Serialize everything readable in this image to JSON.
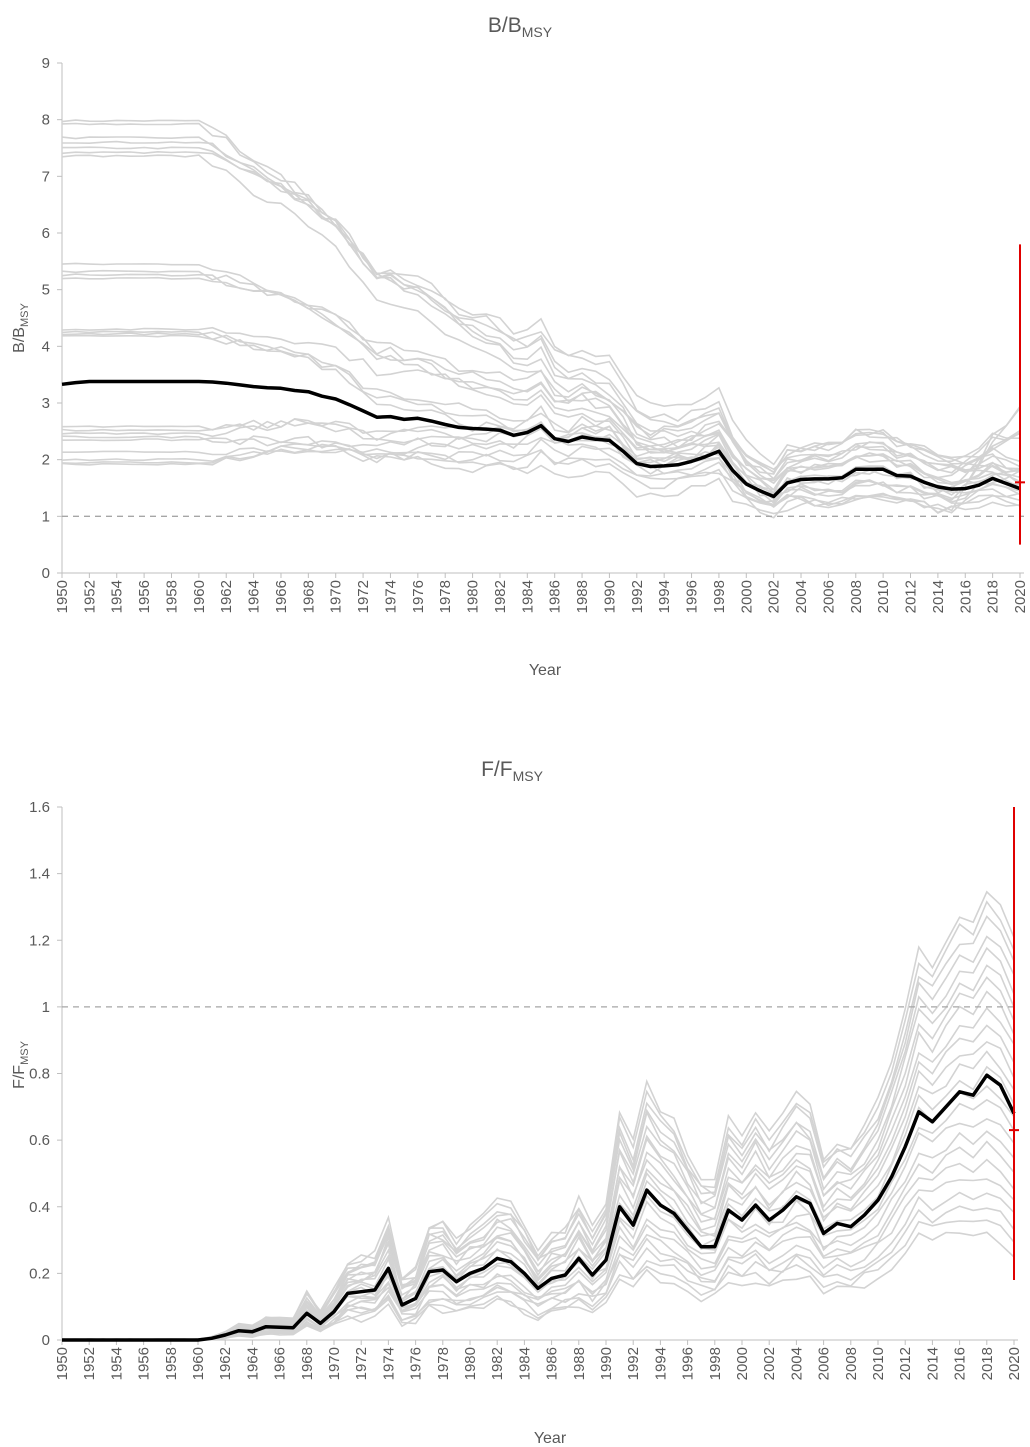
{
  "chart_data": [
    {
      "type": "line",
      "title": "B/B",
      "title_sub": "MSY",
      "xlabel": "Year",
      "ylabel": "B/B",
      "ylabel_sub": "MSY",
      "xlim": [
        1950,
        2020
      ],
      "ylim": [
        0,
        9
      ],
      "yticks": [
        0,
        1,
        2,
        3,
        4,
        5,
        6,
        7,
        8,
        9
      ],
      "xticks": [
        1950,
        1952,
        1954,
        1956,
        1958,
        1960,
        1962,
        1964,
        1966,
        1968,
        1970,
        1972,
        1974,
        1976,
        1978,
        1980,
        1982,
        1984,
        1986,
        1988,
        1990,
        1992,
        1994,
        1996,
        1998,
        2000,
        2002,
        2004,
        2006,
        2008,
        2010,
        2012,
        2014,
        2016,
        2018,
        2020
      ],
      "reference_line": 1,
      "colors": {
        "median": "#000000",
        "ensemble": "#d3d3d3",
        "interval": "#e00000",
        "reference": "#a6a6a6"
      },
      "median": {
        "x": [
          1950,
          1951,
          1952,
          1953,
          1954,
          1955,
          1956,
          1957,
          1958,
          1959,
          1960,
          1961,
          1962,
          1963,
          1964,
          1965,
          1966,
          1967,
          1968,
          1969,
          1970,
          1971,
          1972,
          1973,
          1974,
          1975,
          1976,
          1977,
          1978,
          1979,
          1980,
          1981,
          1982,
          1983,
          1984,
          1985,
          1986,
          1987,
          1988,
          1989,
          1990,
          1991,
          1992,
          1993,
          1994,
          1995,
          1996,
          1997,
          1998,
          1999,
          2000,
          2001,
          2002,
          2003,
          2004,
          2005,
          2006,
          2007,
          2008,
          2009,
          2010,
          2011,
          2012,
          2013,
          2014,
          2015,
          2016,
          2017,
          2018,
          2019,
          2020
        ],
        "y": [
          3.33,
          3.36,
          3.38,
          3.38,
          3.38,
          3.38,
          3.38,
          3.38,
          3.38,
          3.38,
          3.38,
          3.37,
          3.35,
          3.32,
          3.29,
          3.27,
          3.26,
          3.22,
          3.2,
          3.12,
          3.07,
          2.97,
          2.86,
          2.75,
          2.76,
          2.71,
          2.73,
          2.68,
          2.62,
          2.57,
          2.55,
          2.54,
          2.52,
          2.43,
          2.48,
          2.6,
          2.37,
          2.32,
          2.4,
          2.36,
          2.34,
          2.15,
          1.93,
          1.88,
          1.89,
          1.91,
          1.97,
          2.05,
          2.15,
          1.81,
          1.57,
          1.45,
          1.35,
          1.59,
          1.65,
          1.66,
          1.66,
          1.68,
          1.83,
          1.83,
          1.83,
          1.72,
          1.71,
          1.6,
          1.52,
          1.48,
          1.49,
          1.55,
          1.67,
          1.58,
          1.49
        ]
      },
      "interval": {
        "x": 2020,
        "low": 0.5,
        "high": 5.8,
        "point": 1.6
      }
    },
    {
      "type": "line",
      "title": "F/F",
      "title_sub": "MSY",
      "xlabel": "Year",
      "ylabel": "F/F",
      "ylabel_sub": "MSY",
      "xlim": [
        1950,
        2020
      ],
      "ylim": [
        0,
        1.6
      ],
      "yticks": [
        0,
        0.2,
        0.4,
        0.6,
        0.8,
        1,
        1.2,
        1.4,
        1.6
      ],
      "ytick_labels": [
        "0",
        "0.2",
        "0.4",
        "0.6",
        "0.8",
        "1",
        "1.2",
        "1.4",
        "1.6"
      ],
      "xticks": [
        1950,
        1952,
        1954,
        1956,
        1958,
        1960,
        1962,
        1964,
        1966,
        1968,
        1970,
        1972,
        1974,
        1976,
        1978,
        1980,
        1982,
        1984,
        1986,
        1988,
        1990,
        1992,
        1994,
        1996,
        1998,
        2000,
        2002,
        2004,
        2006,
        2008,
        2010,
        2012,
        2014,
        2016,
        2018,
        2020
      ],
      "reference_line": 1,
      "colors": {
        "median": "#000000",
        "ensemble": "#d3d3d3",
        "interval": "#e00000",
        "reference": "#a6a6a6"
      },
      "median": {
        "x": [
          1950,
          1951,
          1952,
          1953,
          1954,
          1955,
          1956,
          1957,
          1958,
          1959,
          1960,
          1961,
          1962,
          1963,
          1964,
          1965,
          1966,
          1967,
          1968,
          1969,
          1970,
          1971,
          1972,
          1973,
          1974,
          1975,
          1976,
          1977,
          1978,
          1979,
          1980,
          1981,
          1982,
          1983,
          1984,
          1985,
          1986,
          1987,
          1988,
          1989,
          1990,
          1991,
          1992,
          1993,
          1994,
          1995,
          1996,
          1997,
          1998,
          1999,
          2000,
          2001,
          2002,
          2003,
          2004,
          2005,
          2006,
          2007,
          2008,
          2009,
          2010,
          2011,
          2012,
          2013,
          2014,
          2015,
          2016,
          2017,
          2018,
          2019,
          2020
        ],
        "y": [
          0,
          0,
          0,
          0,
          0,
          0,
          0,
          0,
          0,
          0,
          0,
          0.005,
          0.015,
          0.028,
          0.025,
          0.04,
          0.038,
          0.037,
          0.08,
          0.05,
          0.085,
          0.14,
          0.145,
          0.15,
          0.215,
          0.105,
          0.125,
          0.205,
          0.21,
          0.175,
          0.2,
          0.215,
          0.245,
          0.235,
          0.2,
          0.155,
          0.185,
          0.195,
          0.245,
          0.195,
          0.24,
          0.4,
          0.345,
          0.45,
          0.405,
          0.38,
          0.33,
          0.28,
          0.28,
          0.39,
          0.36,
          0.405,
          0.36,
          0.39,
          0.43,
          0.41,
          0.32,
          0.35,
          0.34,
          0.375,
          0.42,
          0.49,
          0.58,
          0.685,
          0.655,
          0.7,
          0.745,
          0.735,
          0.795,
          0.765,
          0.68
        ]
      },
      "interval": {
        "x": 2020,
        "low": 0.18,
        "high": 1.6,
        "point": 0.63
      }
    }
  ]
}
